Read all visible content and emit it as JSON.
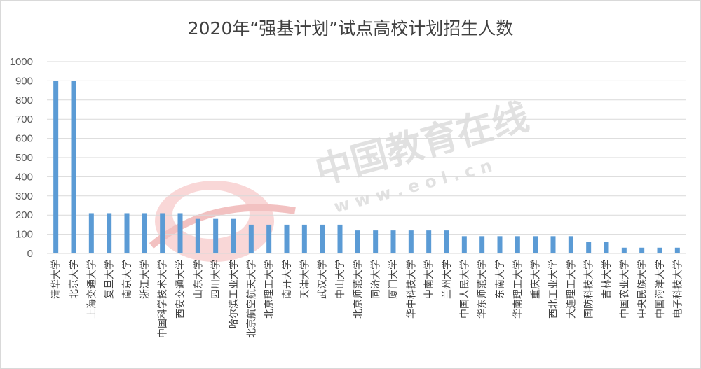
{
  "chart_data": {
    "type": "bar",
    "title": "2020年“强基计划”试点高校计划招生人数",
    "xlabel": "",
    "ylabel": "",
    "ylim": [
      0,
      1000
    ],
    "yticks": [
      0,
      100,
      200,
      300,
      400,
      500,
      600,
      700,
      800,
      900,
      1000
    ],
    "grid": true,
    "legend": "none",
    "bar_color": "#5b9bd5",
    "categories": [
      "清华大学",
      "北京大学",
      "上海交通大学",
      "复旦大学",
      "南京大学",
      "浙江大学",
      "中国科学技术大学",
      "西安交通大学",
      "山东大学",
      "四川大学",
      "哈尔滨工业大学",
      "北京航空航天大学",
      "北京理工大学",
      "南开大学",
      "天津大学",
      "武汉大学",
      "中山大学",
      "北京师范大学",
      "同济大学",
      "厦门大学",
      "华中科技大学",
      "中南大学",
      "兰州大学",
      "中国人民大学",
      "华东师范大学",
      "东南大学",
      "华南理工大学",
      "重庆大学",
      "西北工业大学",
      "大连理工大学",
      "国防科技大学",
      "吉林大学",
      "中国农业大学",
      "中央民族大学",
      "中国海洋大学",
      "电子科技大学"
    ],
    "values": [
      900,
      900,
      210,
      210,
      210,
      210,
      210,
      210,
      180,
      180,
      180,
      150,
      150,
      150,
      150,
      150,
      150,
      120,
      120,
      120,
      120,
      120,
      120,
      90,
      90,
      90,
      90,
      90,
      90,
      90,
      60,
      60,
      30,
      30,
      30,
      30
    ]
  },
  "watermark": {
    "text": "中国教育在线",
    "url": "w w w . e o l . c n",
    "logo": "eol"
  }
}
